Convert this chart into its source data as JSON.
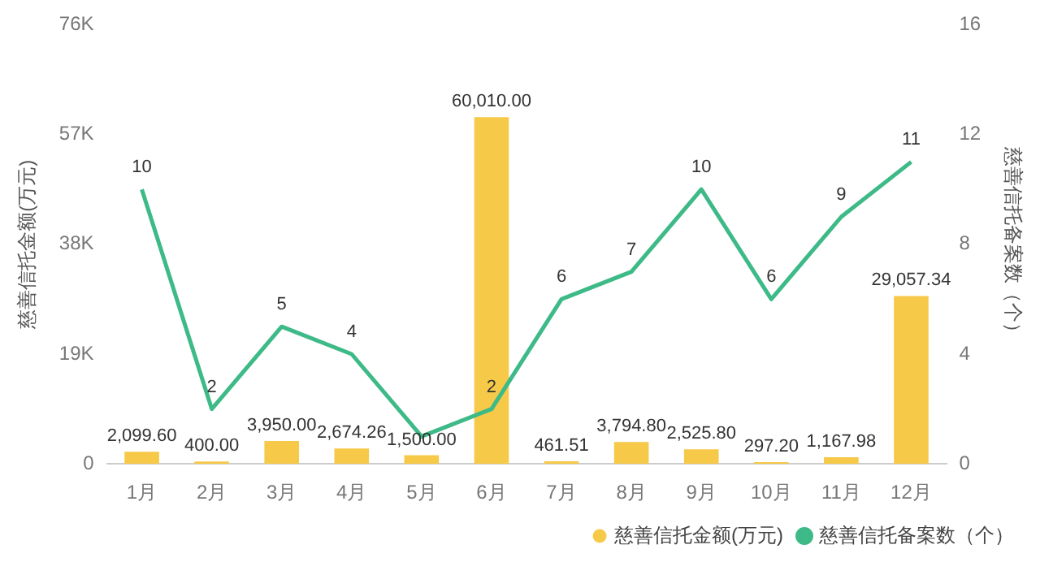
{
  "chart_data": {
    "type": "bar",
    "ylabel": "慈善信托金额(万元)",
    "y2label": "慈善信托备案数（个）",
    "categories": [
      "1月",
      "2月",
      "3月",
      "4月",
      "5月",
      "6月",
      "7月",
      "8月",
      "9月",
      "10月",
      "11月",
      "12月"
    ],
    "series": [
      {
        "name": "慈善信托金额(万元)",
        "type": "bar",
        "color": "#f7c948",
        "values": [
          2099.6,
          400.0,
          3950.0,
          2674.26,
          1500.0,
          60010.0,
          461.51,
          3794.8,
          2525.8,
          297.2,
          1167.98,
          29057.34
        ],
        "value_labels": [
          "2,099.60",
          "400.00",
          "3,950.00",
          "2,674.26",
          "1,500.00",
          "60,010.00",
          "461.51",
          "3,794.80",
          "2,525.80",
          "297.20",
          "1,167.98",
          "29,057.34"
        ]
      },
      {
        "name": "慈善信托备案数（个）",
        "type": "line",
        "axis": "y2",
        "color": "#3dba87",
        "values": [
          10,
          2,
          5,
          4,
          1,
          2,
          6,
          7,
          10,
          6,
          9,
          11
        ],
        "value_labels": [
          "10",
          "2",
          "5",
          "4",
          null,
          "2",
          "6",
          "7",
          "10",
          "6",
          "9",
          "11"
        ]
      }
    ],
    "ylim": [
      0,
      76000
    ],
    "yticks": [
      0,
      {
        "value": 19000,
        "label": "19K"
      },
      {
        "value": 38000,
        "label": "38K"
      },
      {
        "value": 57000,
        "label": "57K"
      },
      {
        "value": 76000,
        "label": "76K"
      }
    ],
    "y2lim": [
      0,
      16
    ],
    "y2ticks": [
      0,
      4,
      8,
      12,
      16
    ],
    "grid": false,
    "legend": "bottom right",
    "marker": "none",
    "line_style": "solid"
  }
}
